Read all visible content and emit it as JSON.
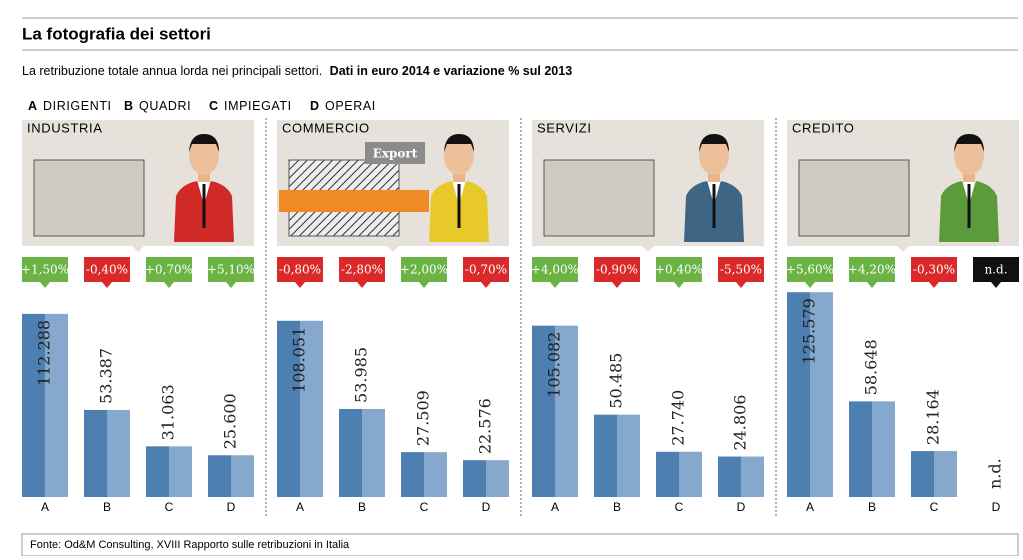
{
  "title": "La fotografia dei settori",
  "subtitle": "La retribuzione totale annua lorda nei principali settori.",
  "subtitle_bold": "Dati in euro 2014 e variazione % sul 2013",
  "legend": [
    {
      "letter": "A",
      "label": "DIRIGENTI"
    },
    {
      "letter": "B",
      "label": "QUADRI"
    },
    {
      "letter": "C",
      "label": "IMPIEGATI"
    },
    {
      "letter": "D",
      "label": "OPERAI"
    }
  ],
  "bar_color": "#4d7fb0",
  "bar_color_light": "#86a8cc",
  "positive_color": "#6ab344",
  "negative_color": "#d9292a",
  "na_color": "#111111",
  "chart_data": [
    {
      "type": "bar",
      "title": "INDUSTRIA",
      "categories": [
        "A",
        "B",
        "C",
        "D"
      ],
      "values": [
        112288,
        53387,
        31063,
        25600
      ],
      "value_labels": [
        "112.288",
        "53.387",
        "31.063",
        "25.600"
      ],
      "changes": [
        1.5,
        -0.4,
        0.7,
        5.1
      ],
      "change_labels": [
        "+1,50%",
        "-0,40%",
        "+0,70%",
        "+5,10%"
      ],
      "ylim": [
        0,
        130000
      ]
    },
    {
      "type": "bar",
      "title": "COMMERCIO",
      "categories": [
        "A",
        "B",
        "C",
        "D"
      ],
      "values": [
        108051,
        53985,
        27509,
        22576
      ],
      "value_labels": [
        "108.051",
        "53.985",
        "27.509",
        "22.576"
      ],
      "changes": [
        -0.8,
        -2.8,
        2.0,
        -0.7
      ],
      "change_labels": [
        "-0,80%",
        "-2,80%",
        "+2,00%",
        "-0,70%"
      ],
      "image_label": "Export",
      "ylim": [
        0,
        130000
      ]
    },
    {
      "type": "bar",
      "title": "SERVIZI",
      "categories": [
        "A",
        "B",
        "C",
        "D"
      ],
      "values": [
        105082,
        50485,
        27740,
        24806
      ],
      "value_labels": [
        "105.082",
        "50.485",
        "27.740",
        "24.806"
      ],
      "changes": [
        4.0,
        -0.9,
        0.4,
        -5.5
      ],
      "change_labels": [
        "+4,00%",
        "-0,90%",
        "+0,40%",
        "-5,50%"
      ],
      "ylim": [
        0,
        130000
      ]
    },
    {
      "type": "bar",
      "title": "CREDITO",
      "categories": [
        "A",
        "B",
        "C",
        "D"
      ],
      "values": [
        125579,
        58648,
        28164,
        null
      ],
      "value_labels": [
        "125.579",
        "58.648",
        "28.164",
        "n.d."
      ],
      "changes": [
        5.6,
        4.2,
        -0.3,
        null
      ],
      "change_labels": [
        "+5,60%",
        "+4,20%",
        "-0,30%",
        "n.d."
      ],
      "ylim": [
        0,
        130000
      ]
    }
  ],
  "source": "Fonte: Od&M Consulting, XVIII Rapporto sulle retribuzioni in Italia"
}
